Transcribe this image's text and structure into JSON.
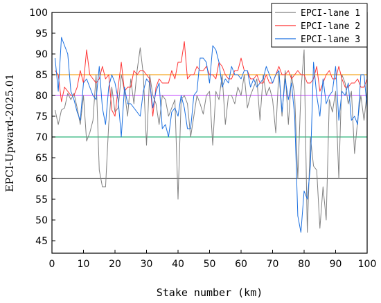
{
  "chart_data": {
    "type": "line",
    "xlabel": "Stake number (km)",
    "ylabel": "EPCI-Upward-2025.01",
    "xlim": [
      0,
      100
    ],
    "ylim": [
      42,
      100
    ],
    "xticks": [
      0,
      10,
      20,
      30,
      40,
      50,
      60,
      70,
      80,
      90,
      100
    ],
    "yticks": [
      45,
      50,
      55,
      60,
      65,
      70,
      75,
      80,
      85,
      90,
      95,
      100
    ],
    "grid": false,
    "legend_position": "top-right",
    "reference_lines": [
      {
        "y": 85,
        "color": "#f5a623"
      },
      {
        "y": 80,
        "color": "#cc66ff"
      },
      {
        "y": 70,
        "color": "#2db37a"
      },
      {
        "y": 60,
        "color": "#333333"
      }
    ],
    "series": [
      {
        "name": "EPCI-lane 1",
        "color": "#808080",
        "x": [
          1,
          2,
          3,
          4,
          5,
          6,
          7,
          8,
          9,
          10,
          11,
          12,
          13,
          14,
          15,
          16,
          17,
          18,
          19,
          20,
          21,
          22,
          23,
          24,
          25,
          26,
          27,
          28,
          29,
          30,
          31,
          32,
          33,
          34,
          35,
          36,
          37,
          38,
          39,
          40,
          41,
          42,
          43,
          44,
          45,
          46,
          47,
          48,
          49,
          50,
          51,
          52,
          53,
          54,
          55,
          56,
          57,
          58,
          59,
          60,
          61,
          62,
          63,
          64,
          65,
          66,
          67,
          68,
          69,
          70,
          71,
          72,
          73,
          74,
          75,
          76,
          77,
          78,
          79,
          80,
          81,
          82,
          83,
          84,
          85,
          86,
          87,
          88,
          89,
          90,
          91,
          92,
          93,
          94,
          95,
          96,
          97,
          98,
          99,
          100
        ],
        "values": [
          76.5,
          73,
          76.5,
          77,
          80.5,
          79,
          80.5,
          77,
          73,
          80,
          69,
          71,
          74,
          85,
          62,
          58,
          58,
          73,
          82,
          76,
          77,
          85,
          81,
          75,
          84,
          78,
          86,
          91.5,
          85,
          68,
          85,
          80,
          78,
          73,
          80,
          79,
          75,
          77,
          79,
          55,
          79,
          80,
          78,
          70,
          75,
          80,
          78,
          75.5,
          80,
          81,
          68,
          81,
          79,
          85,
          73,
          80,
          80,
          78,
          82,
          80,
          85,
          77,
          80,
          82,
          84,
          74,
          85,
          80,
          82,
          79,
          71,
          86,
          75,
          86,
          73,
          85,
          80,
          60,
          81,
          91,
          47,
          70,
          63,
          62,
          48,
          58,
          50,
          79,
          76,
          81,
          60,
          85,
          83,
          78,
          81,
          66,
          74,
          80,
          74,
          81
        ]
      },
      {
        "name": "EPCI-lane 2",
        "color": "#ff3333",
        "x": [
          1,
          2,
          3,
          4,
          5,
          6,
          7,
          8,
          9,
          10,
          11,
          12,
          13,
          14,
          15,
          16,
          17,
          18,
          19,
          20,
          21,
          22,
          23,
          24,
          25,
          26,
          27,
          28,
          29,
          30,
          31,
          32,
          33,
          34,
          35,
          36,
          37,
          38,
          39,
          40,
          41,
          42,
          43,
          44,
          45,
          46,
          47,
          48,
          49,
          50,
          51,
          52,
          53,
          54,
          55,
          56,
          57,
          58,
          59,
          60,
          61,
          62,
          63,
          64,
          65,
          66,
          67,
          68,
          69,
          70,
          71,
          72,
          73,
          74,
          75,
          76,
          77,
          78,
          79,
          80,
          81,
          82,
          83,
          84,
          85,
          86,
          87,
          88,
          89,
          90,
          91,
          92,
          93,
          94,
          95,
          96,
          97,
          98,
          99,
          100
        ],
        "values": [
          86,
          85,
          78.5,
          82,
          81,
          80,
          80,
          82,
          86,
          83,
          91,
          85,
          84,
          83,
          84,
          87,
          84,
          85,
          76.5,
          75,
          82,
          88,
          81,
          82,
          82,
          86,
          85,
          86,
          86,
          85,
          84,
          75,
          82,
          84,
          83,
          83,
          83,
          86,
          84,
          88,
          88,
          93,
          84,
          85,
          85,
          87,
          86,
          86,
          87,
          85,
          85,
          84,
          88,
          87,
          85,
          84,
          84,
          86,
          86,
          89,
          86,
          86,
          84,
          84,
          85,
          83,
          83,
          85,
          83,
          83,
          85,
          87,
          85,
          85,
          86,
          84,
          85,
          86,
          85,
          85,
          83,
          83,
          84,
          87,
          81,
          83,
          85,
          86,
          84,
          84,
          87,
          84,
          82,
          82,
          83,
          83,
          84,
          82,
          82,
          84
        ]
      },
      {
        "name": "EPCI-lane 3",
        "color": "#1a6fe0",
        "x": [
          1,
          2,
          3,
          4,
          5,
          6,
          7,
          8,
          9,
          10,
          11,
          12,
          13,
          14,
          15,
          16,
          17,
          18,
          19,
          20,
          21,
          22,
          23,
          24,
          25,
          26,
          27,
          28,
          29,
          30,
          31,
          32,
          33,
          34,
          35,
          36,
          37,
          38,
          39,
          40,
          41,
          42,
          43,
          44,
          45,
          46,
          47,
          48,
          49,
          50,
          51,
          52,
          53,
          54,
          55,
          56,
          57,
          58,
          59,
          60,
          61,
          62,
          63,
          64,
          65,
          66,
          67,
          68,
          69,
          70,
          71,
          72,
          73,
          74,
          75,
          76,
          77,
          78,
          79,
          80,
          81,
          82,
          83,
          84,
          85,
          86,
          87,
          88,
          89,
          90,
          91,
          92,
          93,
          94,
          95,
          96,
          97,
          98,
          99,
          100
        ],
        "values": [
          89,
          81,
          94,
          92,
          90,
          81,
          79,
          76,
          74,
          83,
          84,
          82,
          80,
          79,
          87,
          77,
          73,
          82,
          85,
          83,
          79,
          70,
          82,
          78,
          78,
          77,
          76,
          75,
          81,
          84,
          83,
          77,
          81,
          83,
          72,
          73,
          70,
          76,
          77,
          75,
          80,
          77,
          72,
          72,
          80,
          81,
          89,
          89,
          88,
          83,
          92,
          91,
          88,
          82,
          84,
          83,
          87,
          85,
          85,
          84,
          86,
          86,
          82,
          84,
          82,
          83,
          84,
          87,
          85,
          83,
          85,
          86,
          76,
          84,
          79,
          83,
          75,
          51,
          47,
          57,
          55,
          63,
          88,
          80,
          75,
          84,
          78,
          80,
          81,
          87,
          74,
          81,
          80,
          83,
          74,
          75,
          73,
          85,
          85,
          77
        ]
      }
    ]
  }
}
